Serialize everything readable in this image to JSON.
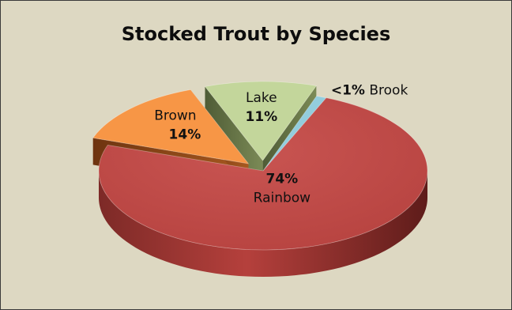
{
  "chart_data": {
    "type": "pie",
    "title": "Stocked Trout by Species",
    "slices": [
      {
        "name": "Rainbow",
        "value": 74,
        "value_label": "74%",
        "color": "#c0504d",
        "exploded": false
      },
      {
        "name": "Brown",
        "value": 14,
        "value_label": "14%",
        "color": "#f79646",
        "exploded": true
      },
      {
        "name": "Lake",
        "value": 11,
        "value_label": "11%",
        "color": "#c3d69b",
        "exploded": true
      },
      {
        "name": "Brook",
        "value": 1,
        "value_label": "<1%",
        "color": "#93cddd",
        "exploded": false
      }
    ],
    "background": "#ddd8c2",
    "style": "3d-exploded"
  }
}
